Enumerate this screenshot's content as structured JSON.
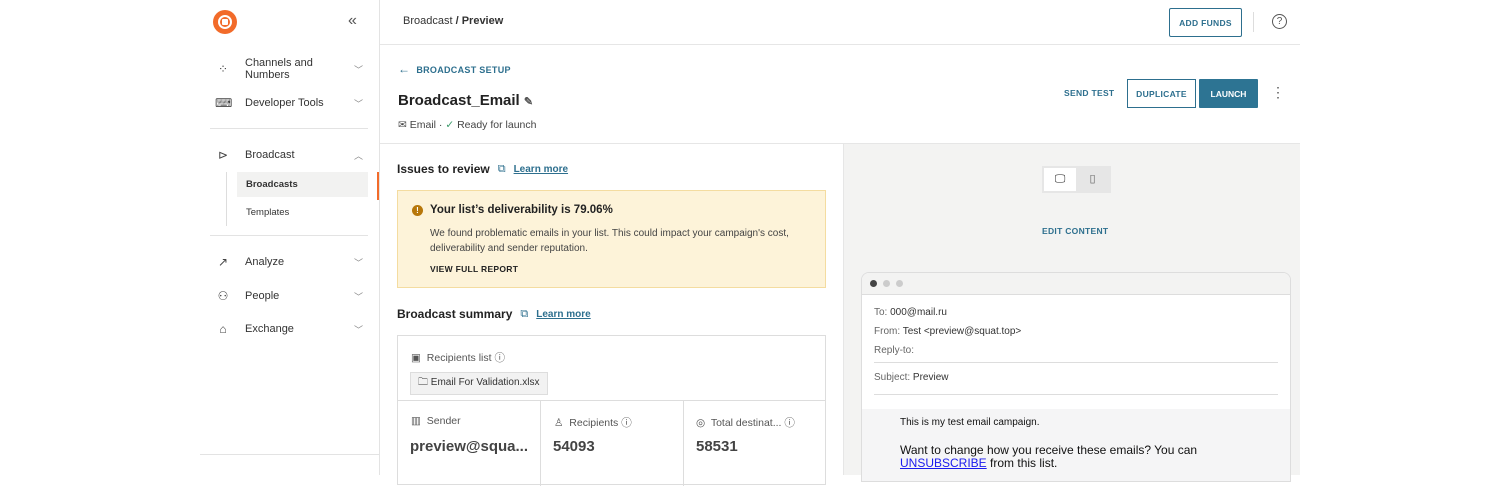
{
  "sidebar": {
    "collapse_icon": "double-chevron-left",
    "items": [
      {
        "label": "Channels and Numbers",
        "icon": "channels-icon"
      },
      {
        "label": "Developer Tools",
        "icon": "code-icon"
      },
      {
        "label": "Broadcast",
        "icon": "megaphone-icon",
        "expanded": true,
        "children": [
          {
            "label": "Broadcasts",
            "active": true
          },
          {
            "label": "Templates"
          }
        ]
      },
      {
        "label": "Analyze",
        "icon": "chart-icon"
      },
      {
        "label": "People",
        "icon": "people-icon"
      },
      {
        "label": "Exchange",
        "icon": "store-icon"
      }
    ]
  },
  "header": {
    "breadcrumb_parent": "Broadcast",
    "breadcrumb_sep": " / ",
    "breadcrumb_current": "Preview",
    "add_funds": "ADD FUNDS"
  },
  "page": {
    "back_label": "BROADCAST SETUP",
    "title": "Broadcast_Email",
    "channel": "Email",
    "status": "Ready for launch",
    "send_test": "SEND TEST",
    "duplicate": "DUPLICATE",
    "launch": "LAUNCH"
  },
  "issues": {
    "title": "Issues to review",
    "learn_more": "Learn more",
    "warning_title": "Your list’s deliverability is 79.06%",
    "warning_body": "We found problematic emails in your list. This could impact your campaign's cost, deliverability and sender reputation.",
    "view_report": "VIEW FULL REPORT"
  },
  "summary": {
    "title": "Broadcast summary",
    "learn_more": "Learn more",
    "recipients_list_label": "Recipients list",
    "file": "Email For Validation.xlsx",
    "sender_label": "Sender",
    "sender_value": "preview@squa...",
    "recipients_label": "Recipients",
    "recipients_value": "54093",
    "total_label": "Total destinat...",
    "total_value": "58531"
  },
  "preview": {
    "edit_content": "EDIT CONTENT",
    "view_mode": "desktop",
    "to_label": "To:",
    "to": "000@mail.ru",
    "from_label": "From:",
    "from": "Test <preview@squat.top>",
    "reply_label": "Reply-to:",
    "subject_label": "Subject:",
    "subject": "Preview",
    "body_line": "This is my test email campaign.",
    "unsub_text": "Want to change how you receive these emails? You can",
    "unsub_link": "UNSUBSCRIBE",
    "unsub_tail": " from this list."
  },
  "colors": {
    "accent": "#2d6f8e",
    "brand": "#f26b2a",
    "warning_bg": "#fdf3d9"
  }
}
